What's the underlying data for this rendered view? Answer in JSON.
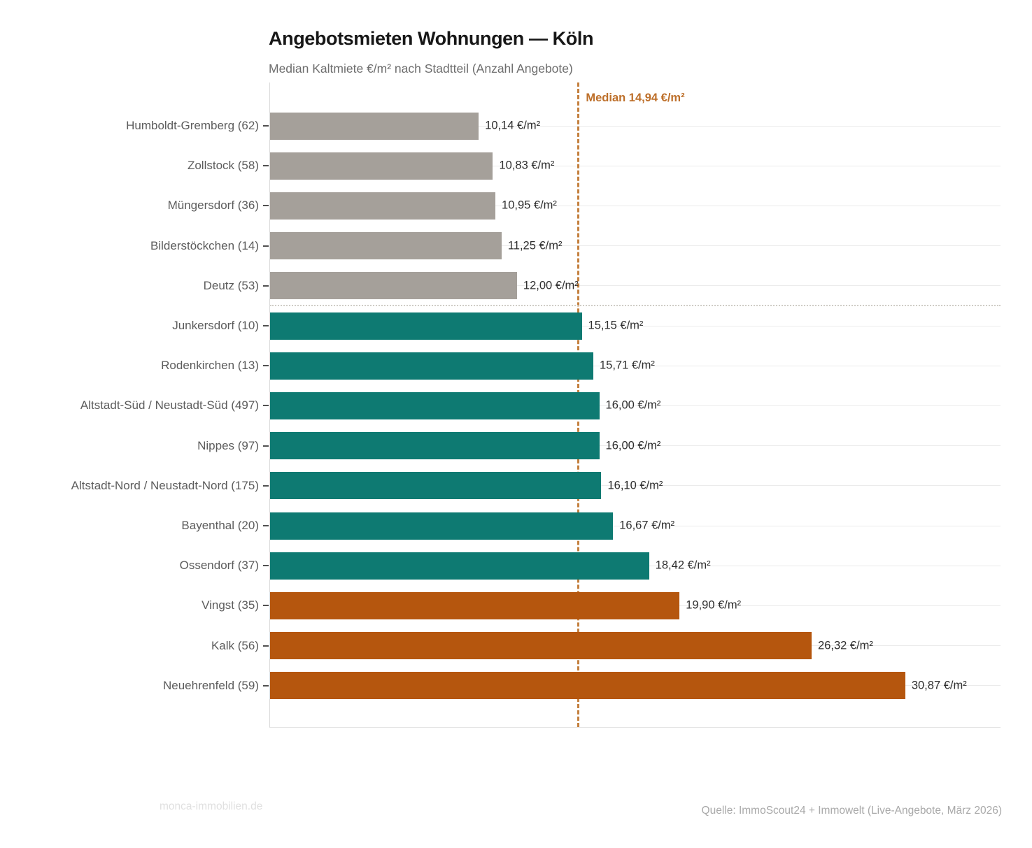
{
  "chart": {
    "title": "Angebotsmieten Wohnungen — Köln",
    "subtitle": "Median Kaltmiete €/m² nach Stadtteil (Anzahl Angebote)",
    "median_label": "Median 14,94 €/m²",
    "footer_left": "monca-immobilien.de",
    "footer_right": "Quelle: ImmoScout24 + Immowelt (Live-Angebote, März 2026)"
  },
  "chart_data": {
    "type": "bar",
    "orientation": "horizontal",
    "title": "Angebotsmieten Wohnungen — Köln",
    "subtitle": "Median Kaltmiete €/m² nach Stadtteil (Anzahl Angebote)",
    "xlabel": "",
    "ylabel": "",
    "unit": "€/m²",
    "xlim": [
      0,
      35.5
    ],
    "grid": true,
    "legend": "none",
    "median": {
      "value": 14.94,
      "label": "Median 14,94 €/m²"
    },
    "group_separator_after_index": 4,
    "colors": {
      "below": "#a5a09a",
      "mid": "#0e7a72",
      "high": "#b5560e",
      "median": "#bd6f2a"
    },
    "rows": [
      {
        "label": "Humboldt-Gremberg",
        "count": 62,
        "label_display": "Humboldt-Gremberg  (62)",
        "value": 10.14,
        "value_display": "10,14 €/m²",
        "group": "below"
      },
      {
        "label": "Zollstock",
        "count": 58,
        "label_display": "Zollstock  (58)",
        "value": 10.83,
        "value_display": "10,83 €/m²",
        "group": "below"
      },
      {
        "label": "Müngersdorf",
        "count": 36,
        "label_display": "Müngersdorf  (36)",
        "value": 10.95,
        "value_display": "10,95 €/m²",
        "group": "below"
      },
      {
        "label": "Bilderstöckchen",
        "count": 14,
        "label_display": "Bilderstöckchen  (14)",
        "value": 11.25,
        "value_display": "11,25 €/m²",
        "group": "below"
      },
      {
        "label": "Deutz",
        "count": 53,
        "label_display": "Deutz  (53)",
        "value": 12.0,
        "value_display": "12,00 €/m²",
        "group": "below"
      },
      {
        "label": "Junkersdorf",
        "count": 10,
        "label_display": "Junkersdorf  (10)",
        "value": 15.15,
        "value_display": "15,15 €/m²",
        "group": "mid"
      },
      {
        "label": "Rodenkirchen",
        "count": 13,
        "label_display": "Rodenkirchen  (13)",
        "value": 15.71,
        "value_display": "15,71 €/m²",
        "group": "mid"
      },
      {
        "label": "Altstadt-Süd / Neustadt-Süd",
        "count": 497,
        "label_display": "Altstadt-Süd / Neustadt-Süd  (497)",
        "value": 16.0,
        "value_display": "16,00 €/m²",
        "group": "mid"
      },
      {
        "label": "Nippes",
        "count": 97,
        "label_display": "Nippes  (97)",
        "value": 16.0,
        "value_display": "16,00 €/m²",
        "group": "mid"
      },
      {
        "label": "Altstadt-Nord / Neustadt-Nord",
        "count": 175,
        "label_display": "Altstadt-Nord / Neustadt-Nord  (175)",
        "value": 16.1,
        "value_display": "16,10 €/m²",
        "group": "mid"
      },
      {
        "label": "Bayenthal",
        "count": 20,
        "label_display": "Bayenthal  (20)",
        "value": 16.67,
        "value_display": "16,67 €/m²",
        "group": "mid"
      },
      {
        "label": "Ossendorf",
        "count": 37,
        "label_display": "Ossendorf  (37)",
        "value": 18.42,
        "value_display": "18,42 €/m²",
        "group": "mid"
      },
      {
        "label": "Vingst",
        "count": 35,
        "label_display": "Vingst  (35)",
        "value": 19.9,
        "value_display": "19,90 €/m²",
        "group": "high"
      },
      {
        "label": "Kalk",
        "count": 56,
        "label_display": "Kalk  (56)",
        "value": 26.32,
        "value_display": "26,32 €/m²",
        "group": "high"
      },
      {
        "label": "Neuehrenfeld",
        "count": 59,
        "label_display": "Neuehrenfeld  (59)",
        "value": 30.87,
        "value_display": "30,87 €/m²",
        "group": "high"
      }
    ]
  }
}
